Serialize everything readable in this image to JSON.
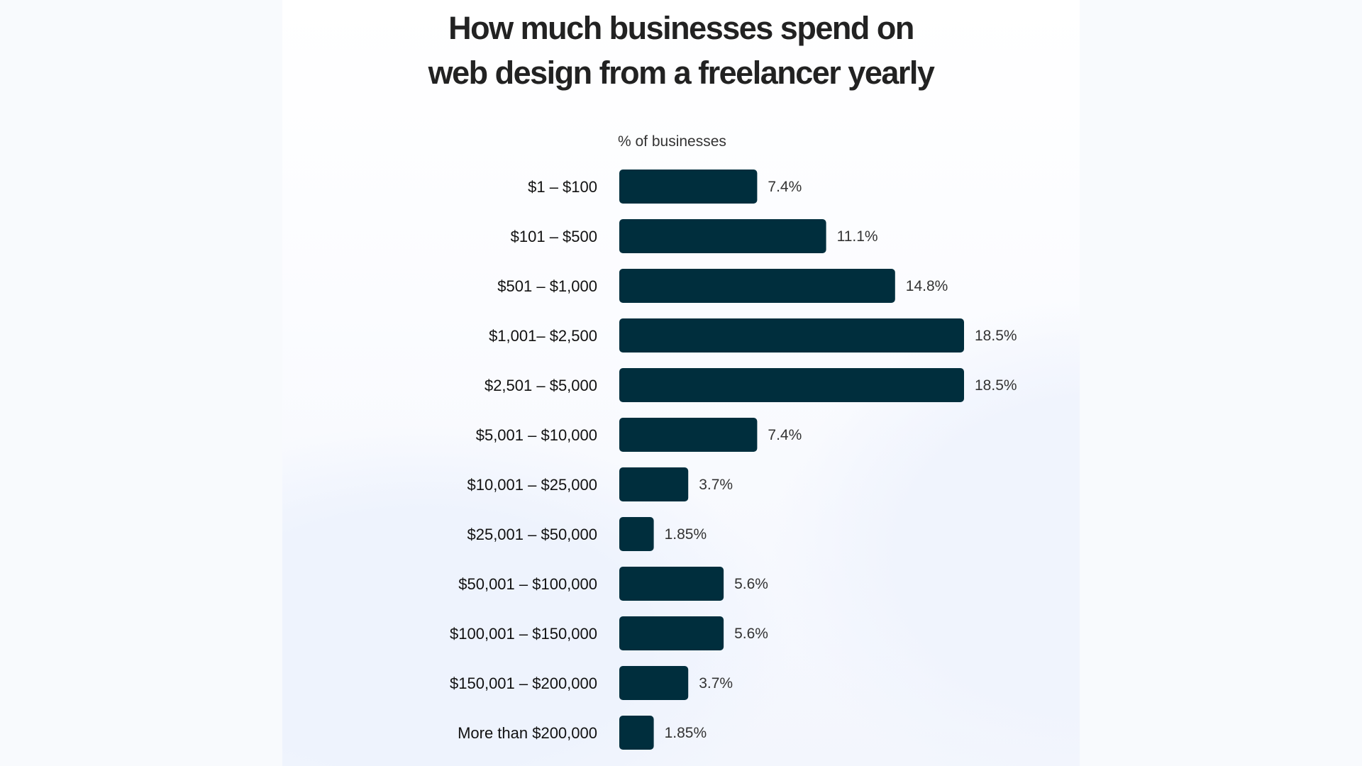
{
  "chart_data": {
    "type": "bar",
    "orientation": "horizontal",
    "title": "How much businesses spend on web design from a freelancer yearly",
    "title_lines": [
      "How much businesses spend on",
      "web design from a freelancer yearly"
    ],
    "xlabel": "% of businesses",
    "categories": [
      "$1 – $100",
      "$101 – $500",
      "$501 – $1,000",
      "$1,001– $2,500",
      "$2,501 – $5,000",
      "$5,001 – $10,000",
      "$10,001 – $25,000",
      "$25,001 – $50,000",
      "$50,001 – $100,000",
      "$100,001 – $150,000",
      "$150,001 – $200,000",
      "More than $200,000"
    ],
    "values": [
      7.4,
      11.1,
      14.8,
      18.5,
      18.5,
      7.4,
      3.7,
      1.85,
      5.6,
      5.6,
      3.7,
      1.85
    ],
    "data_labels": [
      "7.4%",
      "11.1%",
      "14.8%",
      "18.5%",
      "18.5%",
      "7.4%",
      "3.7%",
      "1.85%",
      "5.6%",
      "5.6%",
      "3.7%",
      "1.85%"
    ],
    "xlim": [
      0,
      18.5
    ],
    "grid": false,
    "bar_color": "#002e3d"
  }
}
